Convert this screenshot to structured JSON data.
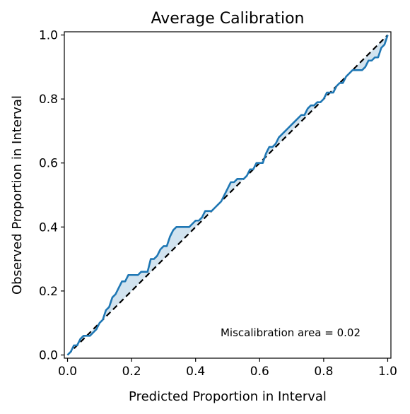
{
  "chart_data": {
    "type": "line",
    "title": "Average Calibration",
    "xlabel": "Predicted Proportion in Interval",
    "ylabel": "Observed Proportion in Interval",
    "xlim": [
      -0.01,
      1.01
    ],
    "ylim": [
      -0.01,
      1.01
    ],
    "xticks": [
      "0.0",
      "0.2",
      "0.4",
      "0.6",
      "0.8",
      "1.0"
    ],
    "yticks": [
      "0.0",
      "0.2",
      "0.4",
      "0.6",
      "0.8",
      "1.0"
    ],
    "grid": false,
    "annotation": "Miscalibration area = 0.02",
    "colors": {
      "line": "#1f77b4",
      "fill": "#a6c8e0",
      "ideal": "#000000"
    },
    "series": [
      {
        "points": [
          [
            0.0,
            0.0
          ],
          [
            0.01,
            0.01
          ],
          [
            0.02,
            0.03
          ],
          [
            0.03,
            0.03
          ],
          [
            0.04,
            0.05
          ],
          [
            0.05,
            0.06
          ],
          [
            0.06,
            0.06
          ],
          [
            0.07,
            0.06
          ],
          [
            0.08,
            0.07
          ],
          [
            0.09,
            0.08
          ],
          [
            0.1,
            0.1
          ],
          [
            0.11,
            0.11
          ],
          [
            0.12,
            0.14
          ],
          [
            0.13,
            0.15
          ],
          [
            0.14,
            0.18
          ],
          [
            0.15,
            0.19
          ],
          [
            0.16,
            0.21
          ],
          [
            0.17,
            0.23
          ],
          [
            0.18,
            0.23
          ],
          [
            0.19,
            0.25
          ],
          [
            0.2,
            0.25
          ],
          [
            0.21,
            0.25
          ],
          [
            0.22,
            0.25
          ],
          [
            0.23,
            0.26
          ],
          [
            0.24,
            0.26
          ],
          [
            0.25,
            0.26
          ],
          [
            0.26,
            0.3
          ],
          [
            0.27,
            0.3
          ],
          [
            0.28,
            0.31
          ],
          [
            0.29,
            0.33
          ],
          [
            0.3,
            0.34
          ],
          [
            0.31,
            0.34
          ],
          [
            0.32,
            0.37
          ],
          [
            0.33,
            0.39
          ],
          [
            0.34,
            0.4
          ],
          [
            0.35,
            0.4
          ],
          [
            0.36,
            0.4
          ],
          [
            0.37,
            0.4
          ],
          [
            0.38,
            0.4
          ],
          [
            0.39,
            0.41
          ],
          [
            0.4,
            0.42
          ],
          [
            0.41,
            0.42
          ],
          [
            0.42,
            0.43
          ],
          [
            0.43,
            0.45
          ],
          [
            0.44,
            0.45
          ],
          [
            0.45,
            0.45
          ],
          [
            0.46,
            0.46
          ],
          [
            0.47,
            0.47
          ],
          [
            0.48,
            0.48
          ],
          [
            0.49,
            0.5
          ],
          [
            0.5,
            0.52
          ],
          [
            0.51,
            0.54
          ],
          [
            0.52,
            0.54
          ],
          [
            0.53,
            0.55
          ],
          [
            0.54,
            0.55
          ],
          [
            0.55,
            0.55
          ],
          [
            0.56,
            0.56
          ],
          [
            0.57,
            0.58
          ],
          [
            0.58,
            0.58
          ],
          [
            0.59,
            0.6
          ],
          [
            0.6,
            0.6
          ],
          [
            0.61,
            0.6
          ],
          [
            0.62,
            0.63
          ],
          [
            0.63,
            0.65
          ],
          [
            0.64,
            0.65
          ],
          [
            0.65,
            0.66
          ],
          [
            0.66,
            0.68
          ],
          [
            0.67,
            0.69
          ],
          [
            0.68,
            0.7
          ],
          [
            0.69,
            0.71
          ],
          [
            0.7,
            0.72
          ],
          [
            0.71,
            0.73
          ],
          [
            0.72,
            0.74
          ],
          [
            0.73,
            0.75
          ],
          [
            0.74,
            0.75
          ],
          [
            0.75,
            0.77
          ],
          [
            0.76,
            0.78
          ],
          [
            0.77,
            0.78
          ],
          [
            0.78,
            0.79
          ],
          [
            0.79,
            0.79
          ],
          [
            0.8,
            0.8
          ],
          [
            0.81,
            0.82
          ],
          [
            0.82,
            0.82
          ],
          [
            0.83,
            0.82
          ],
          [
            0.84,
            0.84
          ],
          [
            0.85,
            0.85
          ],
          [
            0.86,
            0.85
          ],
          [
            0.87,
            0.87
          ],
          [
            0.88,
            0.88
          ],
          [
            0.89,
            0.89
          ],
          [
            0.9,
            0.89
          ],
          [
            0.91,
            0.89
          ],
          [
            0.92,
            0.89
          ],
          [
            0.93,
            0.9
          ],
          [
            0.94,
            0.92
          ],
          [
            0.95,
            0.92
          ],
          [
            0.96,
            0.93
          ],
          [
            0.97,
            0.93
          ],
          [
            0.98,
            0.96
          ],
          [
            0.99,
            0.97
          ],
          [
            1.0,
            1.0
          ]
        ]
      }
    ]
  }
}
